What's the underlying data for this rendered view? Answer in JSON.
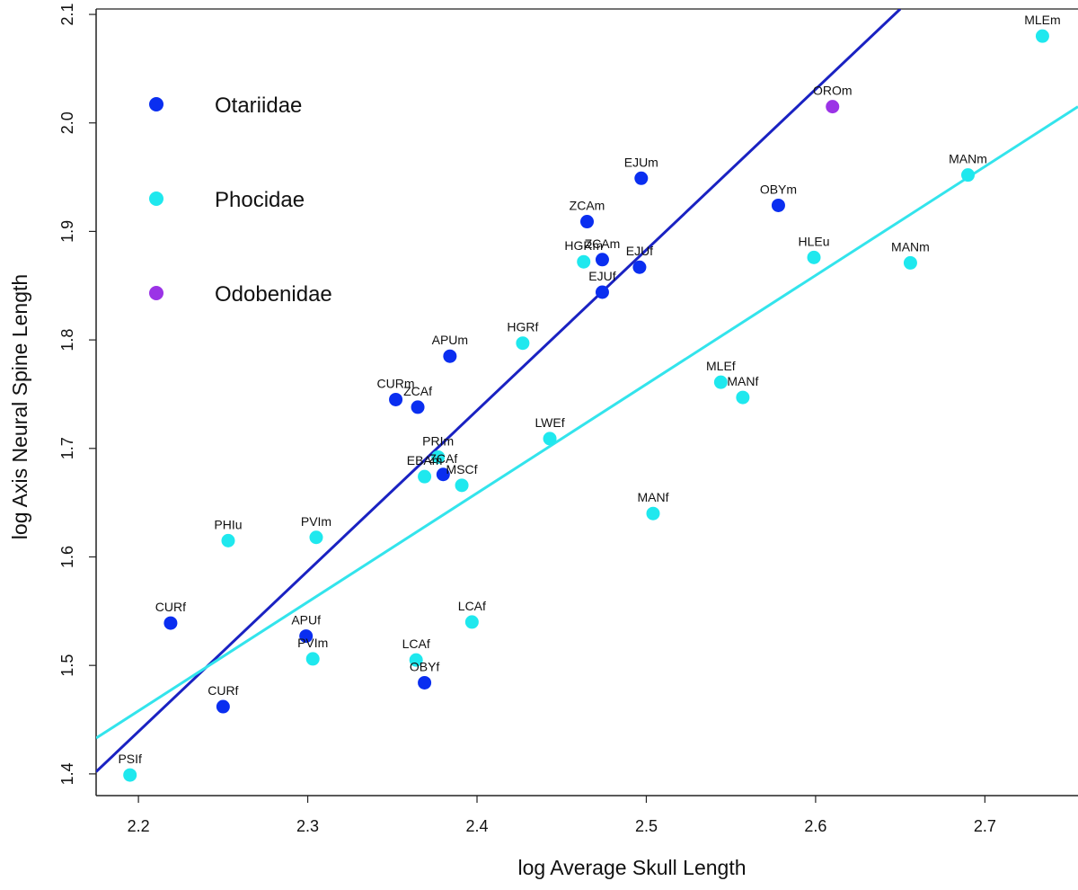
{
  "chart_data": {
    "type": "scatter",
    "title": "",
    "xlabel": "log Average Skull Length",
    "ylabel": "log Axis Neural Spine Length",
    "xlim": [
      2.175,
      2.755
    ],
    "ylim": [
      1.38,
      2.105
    ],
    "x_ticks": [
      "2.2",
      "2.3",
      "2.4",
      "2.5",
      "2.6",
      "2.7"
    ],
    "y_ticks": [
      "1.4",
      "1.5",
      "1.6",
      "1.7",
      "1.8",
      "1.9",
      "2.0",
      "2.1"
    ],
    "grid": false,
    "legend_position": "top-left",
    "series": [
      {
        "name": "Otariidae",
        "color": "#0a2ef0",
        "points": [
          {
            "label": "CURf",
            "x": 2.219,
            "y": 1.539
          },
          {
            "label": "CURf",
            "x": 2.25,
            "y": 1.462
          },
          {
            "label": "APUf",
            "x": 2.299,
            "y": 1.527
          },
          {
            "label": "OBYf",
            "x": 2.369,
            "y": 1.484
          },
          {
            "label": "CURm",
            "x": 2.352,
            "y": 1.745
          },
          {
            "label": "ZCAf",
            "x": 2.365,
            "y": 1.738
          },
          {
            "label": "APUm",
            "x": 2.384,
            "y": 1.785
          },
          {
            "label": "ZCAf",
            "x": 2.38,
            "y": 1.676
          },
          {
            "label": "ZCAm",
            "x": 2.465,
            "y": 1.909
          },
          {
            "label": "ZCAm",
            "x": 2.474,
            "y": 1.874
          },
          {
            "label": "EJUf",
            "x": 2.474,
            "y": 1.844
          },
          {
            "label": "EJUf",
            "x": 2.496,
            "y": 1.867
          },
          {
            "label": "EJUm",
            "x": 2.497,
            "y": 1.949
          },
          {
            "label": "OBYm",
            "x": 2.578,
            "y": 1.924
          }
        ]
      },
      {
        "name": "Phocidae",
        "color": "#1fe8ee",
        "points": [
          {
            "label": "PSIf",
            "x": 2.195,
            "y": 1.399
          },
          {
            "label": "PHIu",
            "x": 2.253,
            "y": 1.615
          },
          {
            "label": "PVIm",
            "x": 2.305,
            "y": 1.618
          },
          {
            "label": "PVIm",
            "x": 2.303,
            "y": 1.506
          },
          {
            "label": "LCAf",
            "x": 2.364,
            "y": 1.505
          },
          {
            "label": "LCAf",
            "x": 2.397,
            "y": 1.54
          },
          {
            "label": "EBAm",
            "x": 2.369,
            "y": 1.674
          },
          {
            "label": "PRIm",
            "x": 2.377,
            "y": 1.692
          },
          {
            "label": "MSCf",
            "x": 2.391,
            "y": 1.666
          },
          {
            "label": "HGRf",
            "x": 2.427,
            "y": 1.797
          },
          {
            "label": "LWEf",
            "x": 2.443,
            "y": 1.709
          },
          {
            "label": "HGRm",
            "x": 2.463,
            "y": 1.872
          },
          {
            "label": "MANf",
            "x": 2.504,
            "y": 1.64
          },
          {
            "label": "MLEf",
            "x": 2.544,
            "y": 1.761
          },
          {
            "label": "MANf",
            "x": 2.557,
            "y": 1.747
          },
          {
            "label": "HLEu",
            "x": 2.599,
            "y": 1.876
          },
          {
            "label": "MANm",
            "x": 2.656,
            "y": 1.871
          },
          {
            "label": "MANm",
            "x": 2.69,
            "y": 1.952
          },
          {
            "label": "MLEm",
            "x": 2.734,
            "y": 2.08
          }
        ]
      },
      {
        "name": "Odobenidae",
        "color": "#9b33e6",
        "points": [
          {
            "label": "OROm",
            "x": 2.61,
            "y": 2.015
          }
        ]
      }
    ],
    "fit_lines": [
      {
        "name": "Otariidae",
        "color": "#1a22c2",
        "x1": 2.175,
        "y1": 1.402,
        "x2": 2.65,
        "y2": 2.105
      },
      {
        "name": "Phocidae",
        "color": "#33e4ec",
        "x1": 2.175,
        "y1": 1.433,
        "x2": 2.755,
        "y2": 2.015
      }
    ]
  }
}
